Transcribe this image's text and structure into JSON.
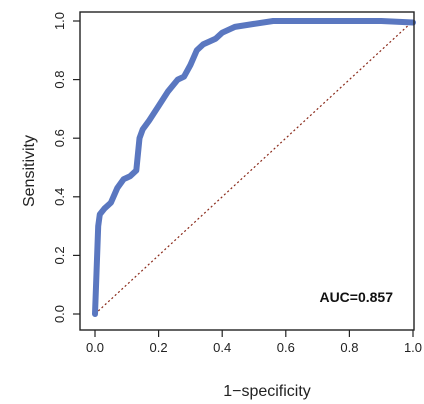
{
  "chart_data": {
    "type": "line",
    "xlabel": "1−specificity",
    "ylabel": "Sensitivity",
    "xlim": [
      0,
      1
    ],
    "ylim": [
      0,
      1
    ],
    "x_ticks": [
      "0.0",
      "0.2",
      "0.4",
      "0.6",
      "0.8",
      "1.0"
    ],
    "y_ticks": [
      "0.0",
      "0.2",
      "0.4",
      "0.6",
      "0.8",
      "1.0"
    ],
    "annotation": "AUC=0.857",
    "annotation_position": "bottom-right",
    "grid": false,
    "colors": {
      "roc": "#5a77c0",
      "reference": "#8a2a1a",
      "axis": "#222222"
    },
    "series": [
      {
        "x": [
          0.0,
          0.005,
          0.01,
          0.015,
          0.03,
          0.05,
          0.07,
          0.09,
          0.11,
          0.13,
          0.14,
          0.15,
          0.17,
          0.2,
          0.23,
          0.26,
          0.28,
          0.3,
          0.32,
          0.34,
          0.36,
          0.38,
          0.4,
          0.44,
          0.5,
          0.56,
          0.62,
          0.7,
          0.8,
          0.9,
          1.0
        ],
        "y": [
          0.0,
          0.15,
          0.3,
          0.34,
          0.36,
          0.38,
          0.43,
          0.46,
          0.47,
          0.49,
          0.6,
          0.63,
          0.66,
          0.71,
          0.76,
          0.8,
          0.81,
          0.85,
          0.9,
          0.92,
          0.93,
          0.94,
          0.96,
          0.98,
          0.99,
          1.0,
          1.0,
          1.0,
          1.0,
          1.0,
          0.995
        ]
      }
    ],
    "reference_line": {
      "x": [
        0,
        1
      ],
      "y": [
        0,
        1
      ]
    }
  }
}
